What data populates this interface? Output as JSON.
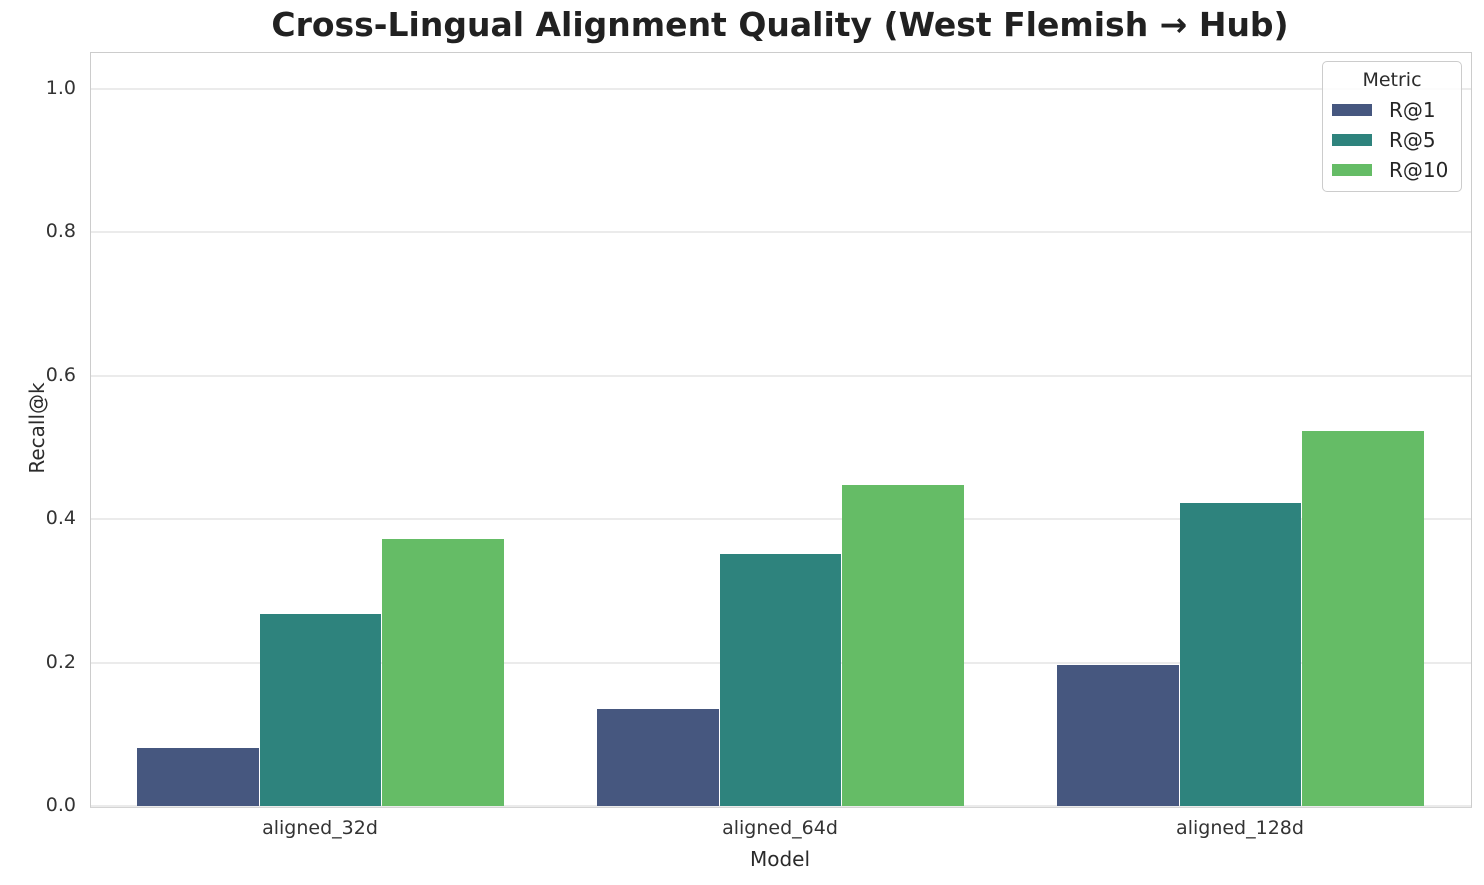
{
  "figure": {
    "background": "#ffffff"
  },
  "chart_data": {
    "type": "bar",
    "title": "Cross-Lingual Alignment Quality (West Flemish → Hub)",
    "xlabel": "Model",
    "ylabel": "Recall@k",
    "categories": [
      "aligned_32d",
      "aligned_64d",
      "aligned_128d"
    ],
    "series": [
      {
        "name": "R@1",
        "color": "#46577f",
        "values": [
          0.081,
          0.135,
          0.196
        ]
      },
      {
        "name": "R@5",
        "color": "#2e837d",
        "values": [
          0.268,
          0.351,
          0.422
        ]
      },
      {
        "name": "R@10",
        "color": "#65bc66",
        "values": [
          0.372,
          0.447,
          0.523
        ]
      }
    ],
    "ylim": [
      0,
      1.05
    ],
    "yticks": [
      0.0,
      0.2,
      0.4,
      0.6,
      0.8,
      1.0
    ],
    "ytick_labels": [
      "0.0",
      "0.2",
      "0.4",
      "0.6",
      "0.8",
      "1.0"
    ],
    "grid": true,
    "bar_group_width": 0.8,
    "legend": {
      "title": "Metric",
      "position": "upper right",
      "entries": [
        "R@1",
        "R@5",
        "R@10"
      ]
    }
  }
}
